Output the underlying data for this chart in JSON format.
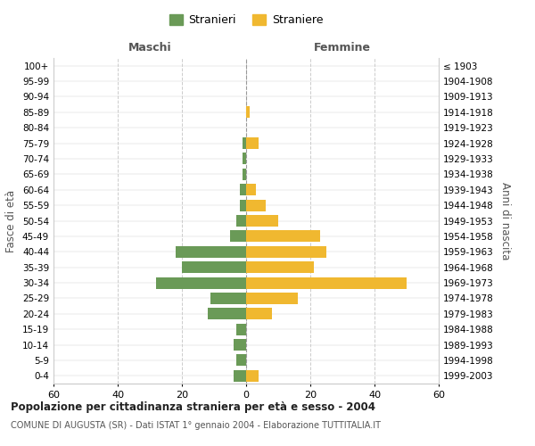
{
  "age_groups": [
    "0-4",
    "5-9",
    "10-14",
    "15-19",
    "20-24",
    "25-29",
    "30-34",
    "35-39",
    "40-44",
    "45-49",
    "50-54",
    "55-59",
    "60-64",
    "65-69",
    "70-74",
    "75-79",
    "80-84",
    "85-89",
    "90-94",
    "95-99",
    "100+"
  ],
  "birth_years": [
    "1999-2003",
    "1994-1998",
    "1989-1993",
    "1984-1988",
    "1979-1983",
    "1974-1978",
    "1969-1973",
    "1964-1968",
    "1959-1963",
    "1954-1958",
    "1949-1953",
    "1944-1948",
    "1939-1943",
    "1934-1938",
    "1929-1933",
    "1924-1928",
    "1919-1923",
    "1914-1918",
    "1909-1913",
    "1904-1908",
    "≤ 1903"
  ],
  "males": [
    4,
    3,
    4,
    3,
    12,
    11,
    28,
    20,
    22,
    5,
    3,
    2,
    2,
    1,
    1,
    1,
    0,
    0,
    0,
    0,
    0
  ],
  "females": [
    4,
    0,
    0,
    0,
    8,
    16,
    50,
    21,
    25,
    23,
    10,
    6,
    3,
    0,
    0,
    4,
    0,
    1,
    0,
    0,
    0
  ],
  "male_color": "#6a9a57",
  "female_color": "#f0b830",
  "title": "Popolazione per cittadinanza straniera per età e sesso - 2004",
  "subtitle": "COMUNE DI AUGUSTA (SR) - Dati ISTAT 1° gennaio 2004 - Elaborazione TUTTITALIA.IT",
  "xlabel_left": "Maschi",
  "xlabel_right": "Femmine",
  "ylabel_left": "Fasce di età",
  "ylabel_right": "Anni di nascita",
  "legend_male": "Stranieri",
  "legend_female": "Straniere",
  "xlim": 60,
  "bg_color": "#ffffff",
  "grid_color": "#cccccc",
  "bar_height": 0.75
}
